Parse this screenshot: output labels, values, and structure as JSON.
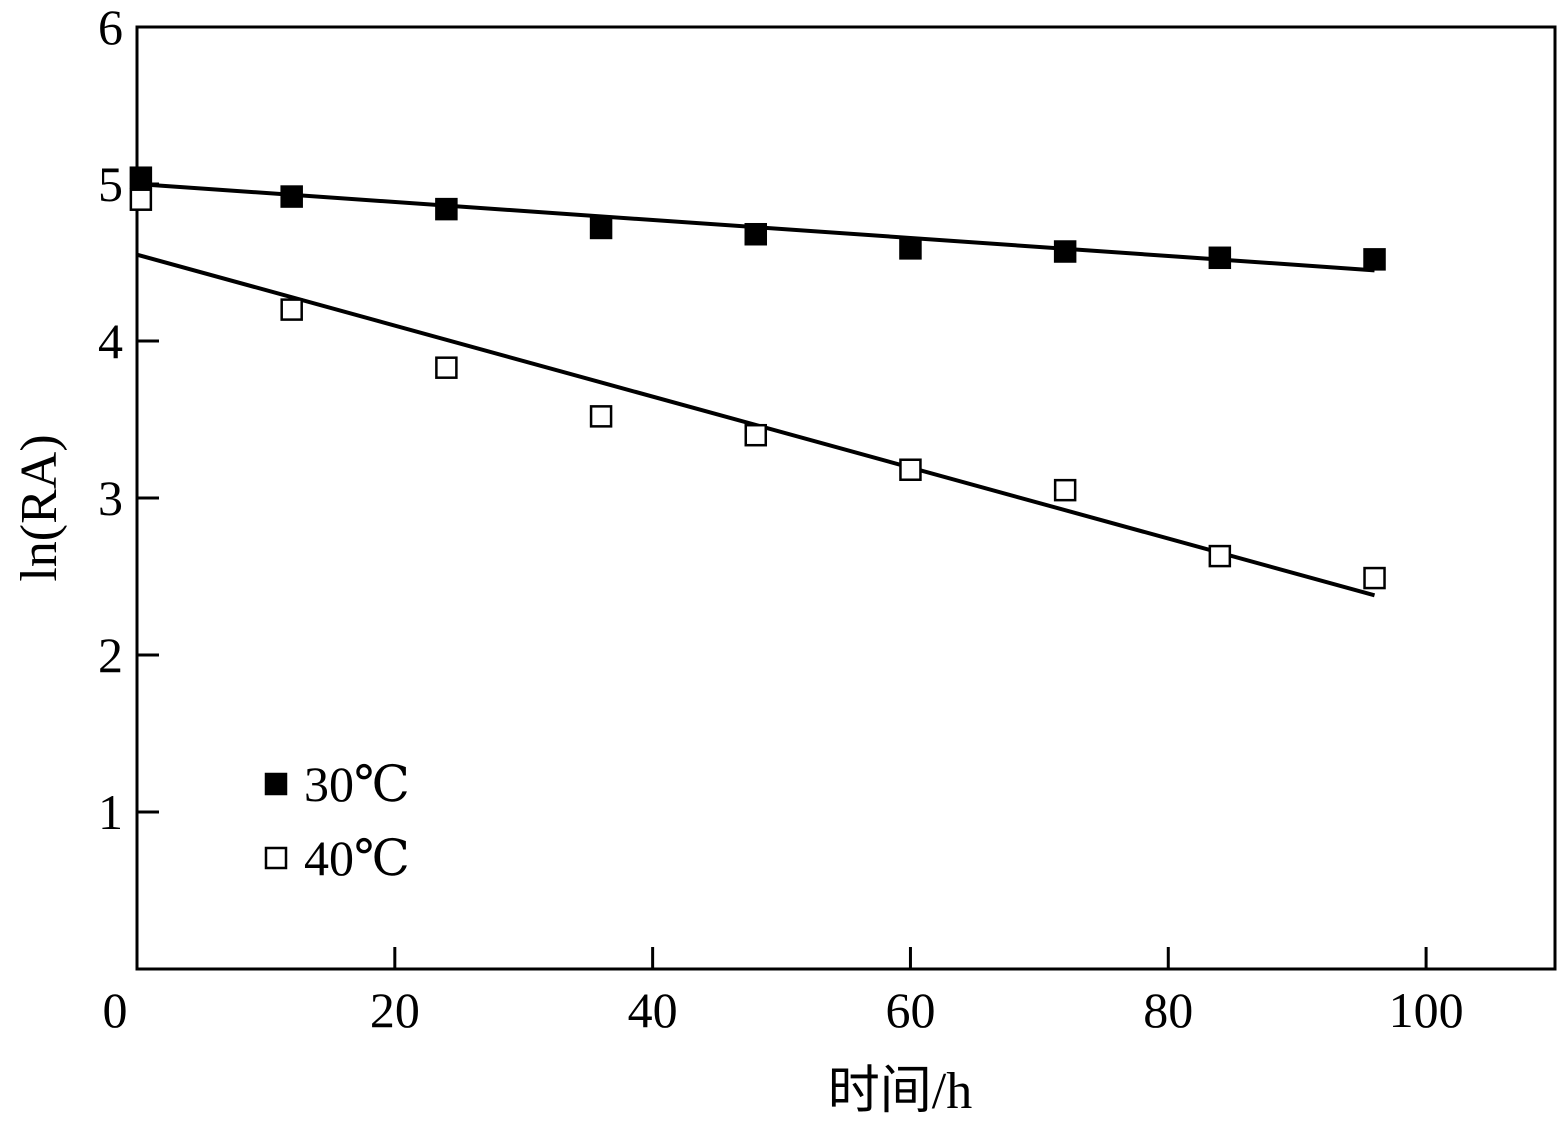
{
  "chart_data": {
    "type": "scatter",
    "xlabel": "时间/h",
    "ylabel": "ln(RA)",
    "xlim": [
      0,
      110
    ],
    "ylim": [
      0,
      6
    ],
    "x_ticks": [
      "0",
      "20",
      "40",
      "60",
      "80",
      "100"
    ],
    "y_ticks": [
      "1",
      "2",
      "3",
      "4",
      "5",
      "6"
    ],
    "grid": false,
    "legend_position": "bottom-left",
    "series": [
      {
        "name": "30℃",
        "marker": "filled-square",
        "color": "#000000",
        "x": [
          0.3,
          12,
          24,
          36,
          48,
          60,
          72,
          84,
          96
        ],
        "y": [
          5.04,
          4.92,
          4.84,
          4.72,
          4.68,
          4.59,
          4.57,
          4.53,
          4.52
        ],
        "fit_line": {
          "x": [
            0,
            96
          ],
          "y": [
            5.0,
            4.45
          ]
        }
      },
      {
        "name": "40℃",
        "marker": "open-square",
        "color": "#000000",
        "x": [
          0.3,
          12,
          24,
          36,
          48,
          60,
          72,
          84,
          96
        ],
        "y": [
          4.9,
          4.2,
          3.83,
          3.52,
          3.4,
          3.18,
          3.05,
          2.63,
          2.49
        ],
        "fit_line": {
          "x": [
            0,
            96
          ],
          "y": [
            4.55,
            2.38
          ]
        }
      }
    ]
  }
}
